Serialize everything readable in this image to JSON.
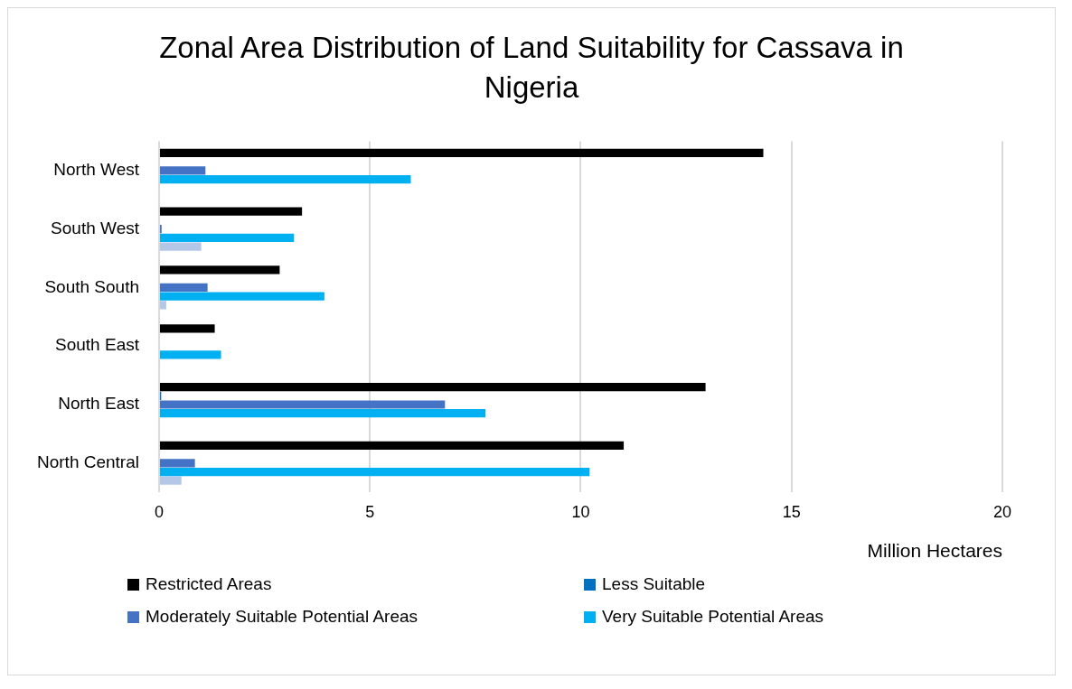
{
  "chart_data": {
    "type": "bar",
    "orientation": "horizontal",
    "title": "Zonal Area Distribution of Land Suitability for Cassava in Nigeria",
    "xlabel": "Million Hectares",
    "categories": [
      "North West",
      "South West",
      "South South",
      "South East",
      "North East",
      "North Central"
    ],
    "series": [
      {
        "name": "Restricted Areas",
        "color": "#000000",
        "values": [
          14.33,
          3.39,
          2.86,
          1.32,
          12.96,
          11.02
        ]
      },
      {
        "name": "Less Suitable",
        "color": "#0070c0",
        "values": [
          0,
          0,
          0,
          0,
          0.05,
          0
        ]
      },
      {
        "name": "Moderately Suitable Potential Areas",
        "color": "#4472c4",
        "values": [
          1.1,
          0.06,
          1.15,
          0,
          6.78,
          0.85
        ]
      },
      {
        "name": "Very Suitable Potential Areas",
        "color": "#00b0f0",
        "values": [
          5.97,
          3.2,
          3.92,
          1.47,
          7.74,
          10.21
        ]
      },
      {
        "color": "#b4c7e7",
        "values": [
          0,
          1.0,
          0.17,
          0.02,
          0,
          0.53
        ]
      }
    ],
    "xlim": [
      0,
      20
    ],
    "xticks": [
      0,
      5,
      10,
      15,
      20
    ],
    "grid": "x",
    "legend": "bottom"
  }
}
